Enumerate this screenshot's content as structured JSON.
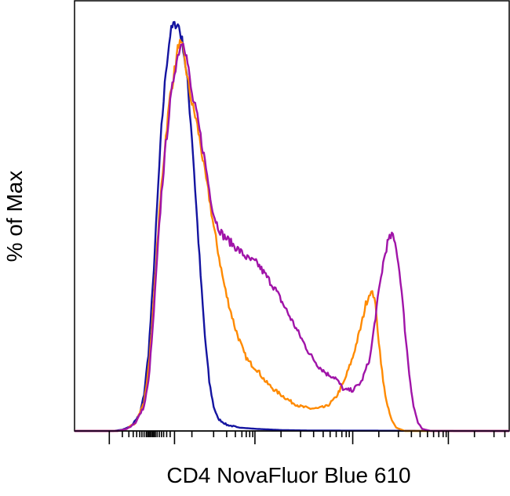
{
  "chart_data": {
    "type": "line",
    "title": "",
    "xlabel": "CD4 NovaFluor Blue 610",
    "ylabel": "% of Max",
    "xscale": "biexponential",
    "grid": false,
    "legend": "none",
    "series": [
      {
        "color": "#1414a0",
        "points": [
          [
            0,
            0
          ],
          [
            0.09,
            0
          ],
          [
            0.11,
            0.003
          ],
          [
            0.13,
            0.012
          ],
          [
            0.15,
            0.04
          ],
          [
            0.16,
            0.09
          ],
          [
            0.17,
            0.19
          ],
          [
            0.18,
            0.35
          ],
          [
            0.19,
            0.55
          ],
          [
            0.2,
            0.74
          ],
          [
            0.21,
            0.88
          ],
          [
            0.22,
            0.97
          ],
          [
            0.23,
            1.0
          ],
          [
            0.24,
            0.99
          ],
          [
            0.25,
            0.94
          ],
          [
            0.26,
            0.85
          ],
          [
            0.27,
            0.72
          ],
          [
            0.28,
            0.55
          ],
          [
            0.29,
            0.38
          ],
          [
            0.3,
            0.23
          ],
          [
            0.31,
            0.12
          ],
          [
            0.32,
            0.06
          ],
          [
            0.33,
            0.03
          ],
          [
            0.35,
            0.015
          ],
          [
            0.38,
            0.008
          ],
          [
            0.42,
            0.005
          ],
          [
            0.48,
            0.002
          ],
          [
            0.55,
            0.001
          ],
          [
            1.0,
            0
          ]
        ]
      },
      {
        "color": "#ff8a00",
        "points": [
          [
            0,
            0
          ],
          [
            0.1,
            0
          ],
          [
            0.12,
            0.005
          ],
          [
            0.14,
            0.02
          ],
          [
            0.16,
            0.07
          ],
          [
            0.17,
            0.15
          ],
          [
            0.18,
            0.28
          ],
          [
            0.19,
            0.45
          ],
          [
            0.2,
            0.6
          ],
          [
            0.21,
            0.72
          ],
          [
            0.22,
            0.82
          ],
          [
            0.23,
            0.88
          ],
          [
            0.24,
            0.95
          ],
          [
            0.25,
            0.93
          ],
          [
            0.26,
            0.86
          ],
          [
            0.27,
            0.8
          ],
          [
            0.28,
            0.76
          ],
          [
            0.29,
            0.7
          ],
          [
            0.3,
            0.63
          ],
          [
            0.31,
            0.57
          ],
          [
            0.32,
            0.5
          ],
          [
            0.33,
            0.44
          ],
          [
            0.34,
            0.38
          ],
          [
            0.35,
            0.33
          ],
          [
            0.36,
            0.29
          ],
          [
            0.37,
            0.25
          ],
          [
            0.38,
            0.22
          ],
          [
            0.39,
            0.19
          ],
          [
            0.4,
            0.17
          ],
          [
            0.42,
            0.15
          ],
          [
            0.44,
            0.12
          ],
          [
            0.46,
            0.1
          ],
          [
            0.48,
            0.085
          ],
          [
            0.5,
            0.07
          ],
          [
            0.52,
            0.06
          ],
          [
            0.54,
            0.055
          ],
          [
            0.56,
            0.055
          ],
          [
            0.58,
            0.06
          ],
          [
            0.6,
            0.08
          ],
          [
            0.62,
            0.12
          ],
          [
            0.64,
            0.18
          ],
          [
            0.66,
            0.26
          ],
          [
            0.67,
            0.31
          ],
          [
            0.68,
            0.34
          ],
          [
            0.69,
            0.33
          ],
          [
            0.7,
            0.22
          ],
          [
            0.71,
            0.12
          ],
          [
            0.72,
            0.06
          ],
          [
            0.73,
            0.025
          ],
          [
            0.74,
            0.008
          ],
          [
            0.76,
            0
          ],
          [
            1.0,
            0
          ]
        ]
      },
      {
        "color": "#a014a8",
        "points": [
          [
            0,
            0
          ],
          [
            0.1,
            0
          ],
          [
            0.12,
            0.005
          ],
          [
            0.14,
            0.02
          ],
          [
            0.16,
            0.06
          ],
          [
            0.17,
            0.12
          ],
          [
            0.18,
            0.25
          ],
          [
            0.19,
            0.42
          ],
          [
            0.2,
            0.58
          ],
          [
            0.21,
            0.7
          ],
          [
            0.22,
            0.8
          ],
          [
            0.23,
            0.88
          ],
          [
            0.24,
            0.93
          ],
          [
            0.25,
            0.96
          ],
          [
            0.26,
            0.9
          ],
          [
            0.27,
            0.82
          ],
          [
            0.28,
            0.78
          ],
          [
            0.29,
            0.72
          ],
          [
            0.3,
            0.66
          ],
          [
            0.31,
            0.59
          ],
          [
            0.32,
            0.53
          ],
          [
            0.33,
            0.5
          ],
          [
            0.34,
            0.48
          ],
          [
            0.35,
            0.47
          ],
          [
            0.36,
            0.46
          ],
          [
            0.37,
            0.45
          ],
          [
            0.38,
            0.44
          ],
          [
            0.39,
            0.43
          ],
          [
            0.4,
            0.42
          ],
          [
            0.42,
            0.41
          ],
          [
            0.44,
            0.38
          ],
          [
            0.46,
            0.35
          ],
          [
            0.48,
            0.31
          ],
          [
            0.5,
            0.27
          ],
          [
            0.52,
            0.23
          ],
          [
            0.54,
            0.19
          ],
          [
            0.56,
            0.16
          ],
          [
            0.58,
            0.14
          ],
          [
            0.6,
            0.13
          ],
          [
            0.62,
            0.1
          ],
          [
            0.64,
            0.1
          ],
          [
            0.66,
            0.12
          ],
          [
            0.68,
            0.18
          ],
          [
            0.7,
            0.34
          ],
          [
            0.71,
            0.41
          ],
          [
            0.72,
            0.46
          ],
          [
            0.73,
            0.48
          ],
          [
            0.74,
            0.45
          ],
          [
            0.75,
            0.37
          ],
          [
            0.76,
            0.25
          ],
          [
            0.77,
            0.14
          ],
          [
            0.78,
            0.06
          ],
          [
            0.79,
            0.02
          ],
          [
            0.8,
            0.005
          ],
          [
            0.82,
            0
          ],
          [
            1.0,
            0
          ]
        ]
      }
    ],
    "xlim": [
      0,
      1
    ],
    "ylim": [
      0,
      1
    ],
    "major_ticks": [
      0.08,
      0.23,
      0.415,
      0.64,
      0.86
    ],
    "minor_ticks": [
      0.11,
      0.125,
      0.135,
      0.143,
      0.15,
      0.155,
      0.16,
      0.165,
      0.168,
      0.171,
      0.174,
      0.177,
      0.18,
      0.183,
      0.186,
      0.19,
      0.195,
      0.2,
      0.205,
      0.212,
      0.22,
      0.27,
      0.32,
      0.35,
      0.37,
      0.385,
      0.395,
      0.403,
      0.41,
      0.475,
      0.52,
      0.55,
      0.572,
      0.588,
      0.602,
      0.615,
      0.625,
      0.632,
      0.7,
      0.745,
      0.775,
      0.795,
      0.812,
      0.826,
      0.838,
      0.848,
      0.855,
      0.92,
      0.965,
      0.99
    ]
  }
}
